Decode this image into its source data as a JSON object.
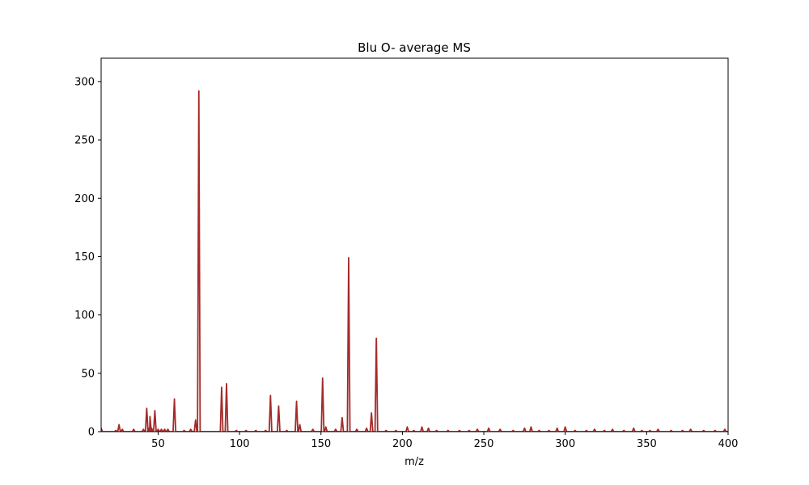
{
  "chart_data": {
    "type": "line",
    "title": "Blu O- average MS",
    "xlabel": "m/z",
    "ylabel": "",
    "xlim": [
      15,
      400
    ],
    "ylim": [
      0,
      320
    ],
    "x_ticks": [
      50,
      100,
      150,
      200,
      250,
      300,
      350,
      400
    ],
    "y_ticks": [
      0,
      50,
      100,
      150,
      200,
      250,
      300
    ],
    "grid": false,
    "series": [
      {
        "color": "#a52a2a",
        "peaks": [
          [
            15,
            3
          ],
          [
            24,
            1
          ],
          [
            26,
            6
          ],
          [
            28,
            2
          ],
          [
            35,
            2
          ],
          [
            41,
            2
          ],
          [
            43,
            20
          ],
          [
            44,
            3
          ],
          [
            45,
            13
          ],
          [
            46,
            3
          ],
          [
            48,
            18
          ],
          [
            50,
            2
          ],
          [
            52,
            2
          ],
          [
            54,
            2
          ],
          [
            56,
            2
          ],
          [
            60,
            28
          ],
          [
            66,
            1
          ],
          [
            70,
            2
          ],
          [
            73,
            10
          ],
          [
            75,
            292
          ],
          [
            89,
            38
          ],
          [
            92,
            41
          ],
          [
            98,
            1
          ],
          [
            104,
            1
          ],
          [
            110,
            1
          ],
          [
            116,
            1
          ],
          [
            119,
            31
          ],
          [
            124,
            22
          ],
          [
            129,
            1
          ],
          [
            135,
            26
          ],
          [
            137,
            6
          ],
          [
            145,
            2
          ],
          [
            151,
            46
          ],
          [
            153,
            4
          ],
          [
            159,
            2
          ],
          [
            163,
            12
          ],
          [
            167,
            149
          ],
          [
            172,
            2
          ],
          [
            178,
            3
          ],
          [
            181,
            16
          ],
          [
            184,
            80
          ],
          [
            190,
            1
          ],
          [
            196,
            1
          ],
          [
            203,
            4
          ],
          [
            207,
            1
          ],
          [
            212,
            4
          ],
          [
            216,
            3
          ],
          [
            221,
            1
          ],
          [
            228,
            1
          ],
          [
            235,
            1
          ],
          [
            241,
            1
          ],
          [
            246,
            2
          ],
          [
            253,
            3
          ],
          [
            260,
            2
          ],
          [
            268,
            1
          ],
          [
            275,
            3
          ],
          [
            279,
            4
          ],
          [
            284,
            1
          ],
          [
            290,
            1
          ],
          [
            295,
            3
          ],
          [
            300,
            4
          ],
          [
            306,
            1
          ],
          [
            313,
            1
          ],
          [
            318,
            2
          ],
          [
            324,
            1
          ],
          [
            329,
            2
          ],
          [
            336,
            1
          ],
          [
            342,
            3
          ],
          [
            347,
            1
          ],
          [
            352,
            1
          ],
          [
            357,
            2
          ],
          [
            365,
            1
          ],
          [
            372,
            1
          ],
          [
            377,
            2
          ],
          [
            385,
            1
          ],
          [
            392,
            1
          ],
          [
            398,
            2
          ]
        ]
      }
    ]
  }
}
